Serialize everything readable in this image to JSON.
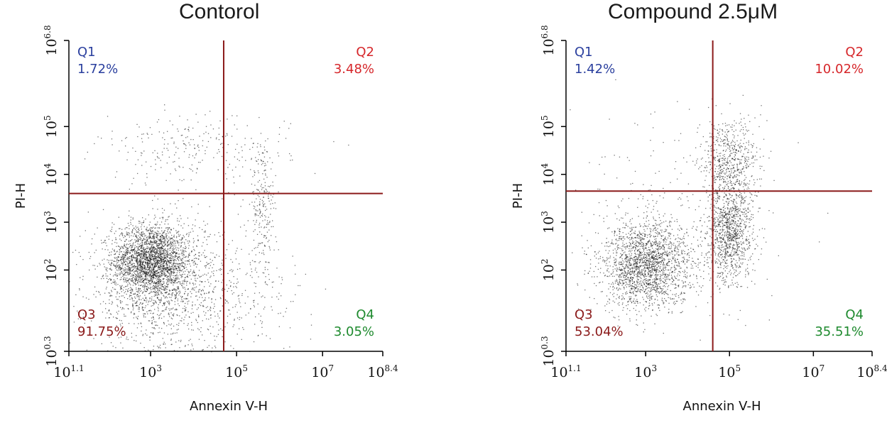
{
  "colors": {
    "gate": "#8b1a1a",
    "q1": "#2a3f9e",
    "q2": "#d6262a",
    "q3": "#8b1a1a",
    "q4": "#1e8a2e",
    "dots": "#000000"
  },
  "chart_data": [
    {
      "type": "scatter",
      "title": "Contorol",
      "xlabel": "Annexin V-H",
      "ylabel": "PI-H",
      "x_scale": "log10",
      "y_scale": "log10",
      "xlim": [
        1.1,
        8.4
      ],
      "ylim": [
        0.3,
        6.8
      ],
      "x_ticks": [
        "10^1.1",
        "10^3",
        "10^5",
        "10^7",
        "10^8.4"
      ],
      "y_ticks": [
        "10^0.3",
        "10^2",
        "10^3",
        "10^4",
        "10^5",
        "10^6.8"
      ],
      "x_tick_values": [
        1.1,
        3,
        5,
        7,
        8.4
      ],
      "y_tick_values": [
        0.3,
        2,
        3,
        4,
        5,
        6.8
      ],
      "x_gate": 4.7,
      "y_gate": 3.6,
      "quadrants": [
        {
          "name": "Q1",
          "percent": "1.72%"
        },
        {
          "name": "Q2",
          "percent": "3.48%"
        },
        {
          "name": "Q3",
          "percent": "91.75%"
        },
        {
          "name": "Q4",
          "percent": "3.05%"
        }
      ],
      "populations": [
        {
          "x": 3.0,
          "y": 2.2,
          "sx": 0.45,
          "sy": 0.38,
          "n": 2400
        },
        {
          "x": 3.3,
          "y": 1.6,
          "sx": 0.9,
          "sy": 0.7,
          "n": 1300
        },
        {
          "x": 4.0,
          "y": 4.5,
          "sx": 1.1,
          "sy": 0.35,
          "n": 260
        },
        {
          "x": 5.6,
          "y": 3.3,
          "sx": 0.15,
          "sy": 0.7,
          "n": 220
        },
        {
          "x": 5.2,
          "y": 1.5,
          "sx": 0.8,
          "sy": 0.6,
          "n": 160
        }
      ]
    },
    {
      "type": "scatter",
      "title": "Compound 2.5μM",
      "xlabel": "Annexin V-H",
      "ylabel": "PI-H",
      "x_scale": "log10",
      "y_scale": "log10",
      "xlim": [
        1.1,
        8.4
      ],
      "ylim": [
        0.3,
        6.8
      ],
      "x_ticks": [
        "10^1.1",
        "10^3",
        "10^5",
        "10^7",
        "10^8.4"
      ],
      "y_ticks": [
        "10^0.3",
        "10^2",
        "10^3",
        "10^4",
        "10^5",
        "10^6.8"
      ],
      "x_tick_values": [
        1.1,
        3,
        5,
        7,
        8.4
      ],
      "y_tick_values": [
        0.3,
        2,
        3,
        4,
        5,
        6.8
      ],
      "x_gate": 4.6,
      "y_gate": 3.65,
      "quadrants": [
        {
          "name": "Q1",
          "percent": "1.42%"
        },
        {
          "name": "Q2",
          "percent": "10.02%"
        },
        {
          "name": "Q3",
          "percent": "53.04%"
        },
        {
          "name": "Q4",
          "percent": "35.51%"
        }
      ],
      "populations": [
        {
          "x": 3.0,
          "y": 2.1,
          "sx": 0.55,
          "sy": 0.45,
          "n": 2000
        },
        {
          "x": 5.0,
          "y": 2.8,
          "sx": 0.28,
          "sy": 0.55,
          "n": 1100
        },
        {
          "x": 5.0,
          "y": 4.3,
          "sx": 0.35,
          "sy": 0.45,
          "n": 550
        },
        {
          "x": 3.6,
          "y": 3.2,
          "sx": 1.1,
          "sy": 1.0,
          "n": 220
        }
      ]
    }
  ]
}
